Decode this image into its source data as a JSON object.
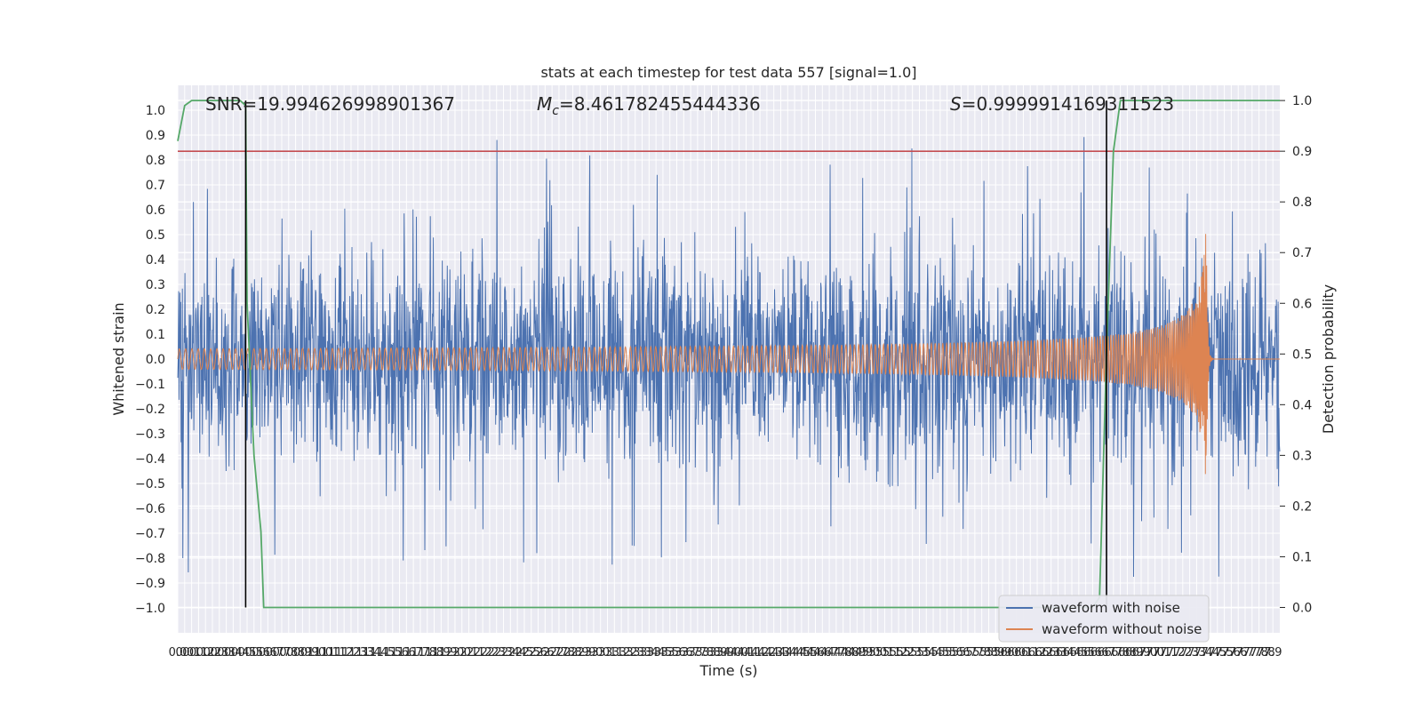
{
  "chart_data": {
    "type": "line",
    "title": "stats at each timestep for test data 557 [signal=1.0]",
    "xlabel": "Time (s)",
    "ylabel": "Whitened strain",
    "y2label": "Detection probability",
    "xlim": [
      0,
      7.95
    ],
    "ylim": [
      -1.1,
      1.1
    ],
    "y2lim": [
      -0.05,
      1.03
    ],
    "x_ticks": [
      0.0,
      0.05,
      0.1,
      0.15,
      0.2,
      0.25,
      0.3,
      0.35,
      0.4,
      0.45,
      0.5,
      0.55,
      0.6,
      0.65,
      0.7,
      0.75,
      0.8,
      0.85,
      0.9,
      0.95,
      1.0,
      1.05,
      1.1,
      1.15,
      1.2,
      1.25,
      1.3,
      1.35,
      1.4,
      1.45,
      1.5,
      1.55,
      1.6,
      1.65,
      1.7,
      1.75,
      1.8,
      1.85,
      1.9,
      1.95,
      2.0,
      2.05,
      2.1,
      2.15,
      2.2,
      2.25,
      2.3,
      2.35,
      2.4,
      2.45,
      2.5,
      2.55,
      2.6,
      2.65,
      2.7,
      2.75,
      2.8,
      2.85,
      2.9,
      2.95,
      3.0,
      3.05,
      3.1,
      3.15,
      3.2,
      3.25,
      3.3,
      3.35,
      3.4,
      3.45,
      3.5,
      3.55,
      3.6,
      3.65,
      3.7,
      3.75,
      3.8,
      3.85,
      3.9,
      3.95,
      4.0,
      4.05,
      4.1,
      4.15,
      4.2,
      4.25,
      4.3,
      4.35,
      4.4,
      4.45,
      4.5,
      4.55,
      4.6,
      4.65,
      4.7,
      4.75,
      4.8,
      4.85,
      4.9,
      4.95,
      5.0,
      5.05,
      5.1,
      5.15,
      5.2,
      5.25,
      5.3,
      5.35,
      5.4,
      5.45,
      5.5,
      5.55,
      5.6,
      5.65,
      5.7,
      5.75,
      5.8,
      5.85,
      5.9,
      5.95,
      6.0,
      6.05,
      6.1,
      6.15,
      6.2,
      6.25,
      6.3,
      6.35,
      6.4,
      6.45,
      6.5,
      6.55,
      6.6,
      6.65,
      6.7,
      6.75,
      6.8,
      6.85,
      6.9,
      6.95,
      7.0,
      7.05,
      7.1,
      7.15,
      7.2,
      7.25,
      7.3,
      7.35,
      7.4,
      7.45,
      7.5,
      7.55,
      7.6,
      7.65,
      7.7,
      7.75,
      7.8,
      7.85,
      7.9
    ],
    "x_tick_labels": [
      "0.0",
      "0.0",
      "0.1",
      "0.1",
      "0.2",
      "0.2",
      "0.3",
      "0.3",
      "0.4",
      "0.4",
      "0.5",
      "0.5",
      "0.6",
      "0.6",
      "0.7",
      "0.7",
      "0.8",
      "0.8",
      "0.9",
      "0.9",
      "1.0",
      "1.0",
      "1.1",
      "1.1",
      "1.2",
      "1.2",
      "1.3",
      "1.3",
      "1.4",
      "1.4",
      "1.5",
      "1.5",
      "1.6",
      "1.6",
      "1.7",
      "1.7",
      "1.8",
      "1.8",
      "1.9",
      "1.9",
      "2.0",
      "2.0",
      "2.1",
      "2.1",
      "2.2",
      "2.2",
      "2.3",
      "2.3",
      "2.4",
      "2.4",
      "2.5",
      "2.5",
      "2.6",
      "2.6",
      "2.7",
      "2.7",
      "2.8",
      "2.8",
      "2.9",
      "2.9",
      "3.0",
      "3.0",
      "3.1",
      "3.1",
      "3.2",
      "3.2",
      "3.3",
      "3.3",
      "3.4",
      "3.4",
      "3.5",
      "3.5",
      "3.6",
      "3.6",
      "3.7",
      "3.7",
      "3.8",
      "3.8",
      "3.9",
      "3.9",
      "4.0",
      "4.0",
      "4.1",
      "4.1",
      "4.2",
      "4.2",
      "4.3",
      "4.3",
      "4.4",
      "4.4",
      "4.5",
      "4.5",
      "4.6",
      "4.6",
      "4.7",
      "4.7",
      "4.8",
      "4.8",
      "4.9",
      "4.9",
      "5.0",
      "5.0",
      "5.1",
      "5.1",
      "5.2",
      "5.2",
      "5.3",
      "5.3",
      "5.4",
      "5.4",
      "5.5",
      "5.5",
      "5.6",
      "5.6",
      "5.7",
      "5.7",
      "5.8",
      "5.8",
      "5.9",
      "5.9",
      "6.0",
      "6.0",
      "6.1",
      "6.1",
      "6.2",
      "6.2",
      "6.3",
      "6.3",
      "6.4",
      "6.4",
      "6.5",
      "6.5",
      "6.6",
      "6.6",
      "6.7",
      "6.7",
      "6.8",
      "6.8",
      "6.9",
      "6.9",
      "7.0",
      "7.0",
      "7.1",
      "7.1",
      "7.2",
      "7.2",
      "7.3",
      "7.3",
      "7.4",
      "7.4",
      "7.5",
      "7.5",
      "7.6",
      "7.6",
      "7.7",
      "7.7",
      "7.8",
      "7.8",
      "7.9"
    ],
    "y_ticks": [
      -1.0,
      -0.9,
      -0.8,
      -0.7,
      -0.6,
      -0.5,
      -0.4,
      -0.3,
      -0.2,
      -0.1,
      0.0,
      0.1,
      0.2,
      0.3,
      0.4,
      0.5,
      0.6,
      0.7,
      0.8,
      0.9,
      1.0
    ],
    "y_tick_labels": [
      "−1.0",
      "−0.9",
      "−0.8",
      "−0.7",
      "−0.6",
      "−0.5",
      "−0.4",
      "−0.3",
      "−0.2",
      "−0.1",
      "0.0",
      "0.1",
      "0.2",
      "0.3",
      "0.4",
      "0.5",
      "0.6",
      "0.7",
      "0.8",
      "0.9",
      "1.0"
    ],
    "y2_ticks": [
      0.0,
      0.1,
      0.2,
      0.3,
      0.4,
      0.5,
      0.6,
      0.7,
      0.8,
      0.9,
      1.0
    ],
    "y2_tick_labels": [
      "0.0",
      "0.1",
      "0.2",
      "0.3",
      "0.4",
      "0.5",
      "0.6",
      "0.7",
      "0.8",
      "0.9",
      "1.0"
    ],
    "annotations": {
      "snr": "SNR=19.994626998901367",
      "mc_symbol": "M",
      "mc_sub": "c",
      "mc_value": "=8.461782455444336",
      "s_symbol": "S",
      "s_value": "=0.9999914169311523"
    },
    "threshold": {
      "value": 0.9,
      "axis": "y2",
      "color": "#c44e52"
    },
    "vlines": [
      0.49,
      6.7
    ],
    "series": [
      {
        "name": "waveform with noise",
        "color": "#4c72b0",
        "kind": "noise",
        "amplitude_typical": 0.4,
        "amplitude_peak": 1.0,
        "x_range": [
          0,
          7.95
        ]
      },
      {
        "name": "waveform without noise",
        "color": "#dd8452",
        "kind": "chirp",
        "amplitude_start": 0.02,
        "amplitude_end": 0.57,
        "merger_time": 7.42,
        "x_range": [
          0,
          7.95
        ]
      },
      {
        "name": "detection probability",
        "color": "#55a868",
        "axis": "y2",
        "x": [
          0.0,
          0.05,
          0.1,
          0.45,
          0.49,
          0.5,
          0.55,
          0.6,
          0.62,
          6.6,
          6.65,
          6.7,
          6.75,
          6.8,
          7.95
        ],
        "values": [
          0.92,
          0.99,
          1.0,
          1.0,
          0.99,
          0.6,
          0.3,
          0.15,
          0.0,
          0.0,
          0.02,
          0.5,
          0.9,
          1.0,
          1.0
        ]
      }
    ],
    "legend": {
      "location": "lower-right",
      "entries": [
        {
          "label": "waveform with noise",
          "color": "#4c72b0"
        },
        {
          "label": "waveform without noise",
          "color": "#dd8452"
        }
      ]
    }
  }
}
